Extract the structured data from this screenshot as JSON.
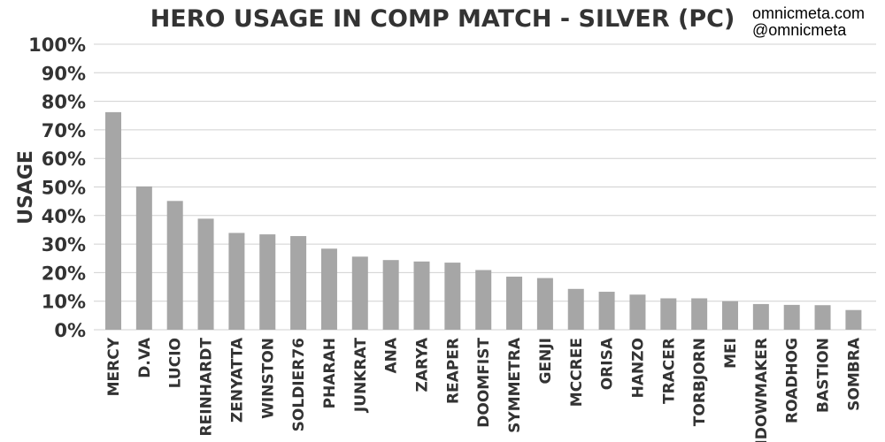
{
  "credits": {
    "site": "omnicmeta.com",
    "handle": "@omnicmeta"
  },
  "colors": {
    "bar": "#a6a6a6",
    "grid": "#d0d0d0",
    "text": "#333333"
  },
  "chart_data": {
    "type": "bar",
    "title": "HERO USAGE IN COMP MATCH - SILVER (PC)",
    "xlabel": "",
    "ylabel": "USAGE",
    "ylim": [
      0,
      100
    ],
    "y_ticks": [
      "0%",
      "10%",
      "20%",
      "30%",
      "40%",
      "50%",
      "60%",
      "70%",
      "80%",
      "90%",
      "100%"
    ],
    "y_tick_values": [
      0,
      10,
      20,
      30,
      40,
      50,
      60,
      70,
      80,
      90,
      100
    ],
    "grid": true,
    "legend": "none",
    "categories": [
      "MERCY",
      "D.VA",
      "LUCIO",
      "REINHARDT",
      "ZENYATTA",
      "WINSTON",
      "SOLDIER76",
      "PHARAH",
      "JUNKRAT",
      "ANA",
      "ZARYA",
      "REAPER",
      "DOOMFIST",
      "SYMMETRA",
      "GENJI",
      "MCCREE",
      "ORISA",
      "HANZO",
      "TRACER",
      "TORBJORN",
      "MEI",
      "WIDOWMAKER",
      "ROADHOG",
      "BASTION",
      "SOMBRA"
    ],
    "values": [
      76.2,
      50.2,
      45.1,
      38.9,
      33.9,
      33.4,
      32.8,
      28.4,
      25.6,
      24.4,
      23.9,
      23.5,
      20.9,
      18.6,
      18.1,
      14.3,
      13.3,
      12.3,
      11.0,
      11.0,
      10.0,
      9.0,
      8.7,
      8.6,
      6.9
    ]
  }
}
